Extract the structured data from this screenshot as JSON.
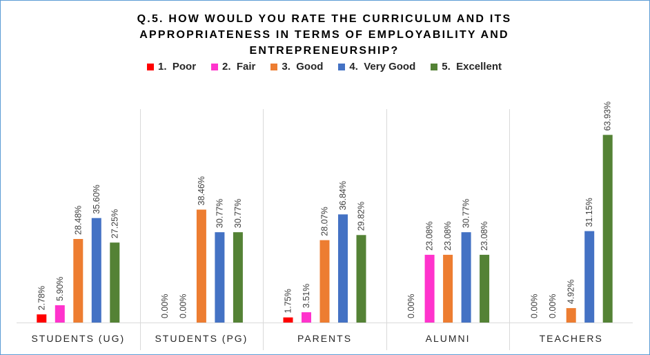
{
  "chart_data": {
    "type": "bar",
    "title_lines": [
      "Q.5. HOW WOULD YOU RATE THE CURRICULUM AND ITS",
      "APPROPRIATENESS IN TERMS OF EMPLOYABILITY AND",
      "ENTREPRENEURSHIP?"
    ],
    "categories": [
      "STUDENTS (UG)",
      "STUDENTS (PG)",
      "PARENTS",
      "ALUMNI",
      "TEACHERS"
    ],
    "series": [
      {
        "name": "1.  Poor",
        "color": "#ff0000",
        "values": [
          2.78,
          0.0,
          1.75,
          0.0,
          0.0
        ],
        "labels": [
          "2.78%",
          "0.00%",
          "1.75%",
          "0.00%",
          "0.00%"
        ]
      },
      {
        "name": "2.  Fair",
        "color": "#ff33cc",
        "values": [
          5.9,
          0.0,
          3.51,
          23.08,
          0.0
        ],
        "labels": [
          "5.90%",
          "0.00%",
          "3.51%",
          "23.08%",
          "0.00%"
        ]
      },
      {
        "name": "3.  Good",
        "color": "#ed7d31",
        "values": [
          28.48,
          38.46,
          28.07,
          23.08,
          4.92
        ],
        "labels": [
          "28.48%",
          "38.46%",
          "28.07%",
          "23.08%",
          "4.92%"
        ]
      },
      {
        "name": "4.  Very Good",
        "color": "#4472c4",
        "values": [
          35.6,
          30.77,
          36.84,
          30.77,
          31.15
        ],
        "labels": [
          "35.60%",
          "30.77%",
          "36.84%",
          "30.77%",
          "31.15%"
        ]
      },
      {
        "name": "5.  Excellent",
        "color": "#548235",
        "values": [
          27.25,
          30.77,
          29.82,
          23.08,
          63.93
        ],
        "labels": [
          "27.25%",
          "30.77%",
          "29.82%",
          "23.08%",
          "63.93%"
        ]
      }
    ],
    "ylim": [
      0,
      70
    ],
    "legend_position": "top",
    "grid": false,
    "category_separators": true
  }
}
